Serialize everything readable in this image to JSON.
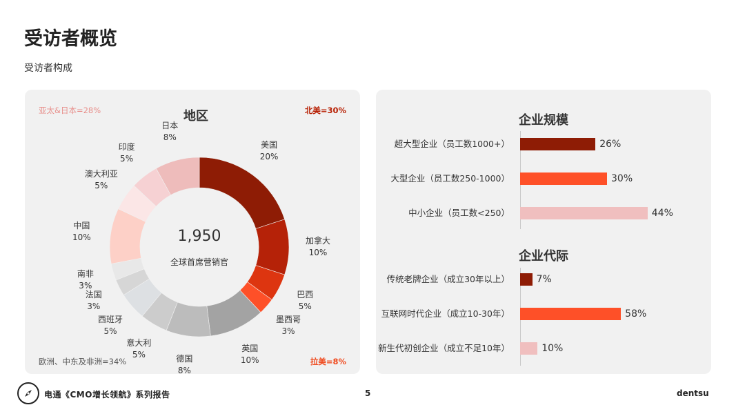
{
  "header": {
    "title": "受访者概览",
    "subtitle": "受访者构成"
  },
  "region_panel": {
    "corners": {
      "apac": "亚太&日本=28%",
      "na": "北美=30%",
      "emea": "欧洲、中东及非洲=34%",
      "latam": "拉美=8%"
    },
    "corner_colors": {
      "apac": "#e8908c",
      "na": "#b82105",
      "emea": "#555555",
      "latam": "#f04a1e"
    },
    "center_value": "1,950",
    "center_caption": "全球首席营销官"
  },
  "sizes_panel": {
    "title": "企业规模"
  },
  "era_panel": {
    "title": "企业代际"
  },
  "chart_data": [
    {
      "type": "pie",
      "title": "地区",
      "slices": [
        {
          "label": "美国",
          "value": 20,
          "value_label": "20%",
          "color": "#8e1c05"
        },
        {
          "label": "加拿大",
          "value": 10,
          "value_label": "10%",
          "color": "#b52208"
        },
        {
          "label": "巴西",
          "value": 5,
          "value_label": "5%",
          "color": "#dd3510"
        },
        {
          "label": "墨西哥",
          "value": 3,
          "value_label": "3%",
          "color": "#fe5028"
        },
        {
          "label": "英国",
          "value": 10,
          "value_label": "10%",
          "color": "#a3a3a3"
        },
        {
          "label": "德国",
          "value": 8,
          "value_label": "8%",
          "color": "#bcbcbc"
        },
        {
          "label": "意大利",
          "value": 5,
          "value_label": "5%",
          "color": "#cccccc"
        },
        {
          "label": "西班牙",
          "value": 5,
          "value_label": "5%",
          "color": "#dde0e3"
        },
        {
          "label": "法国",
          "value": 3,
          "value_label": "3%",
          "color": "#d6d6d6"
        },
        {
          "label": "南非",
          "value": 3,
          "value_label": "3%",
          "color": "#e8e8e8"
        },
        {
          "label": "中国",
          "value": 10,
          "value_label": "10%",
          "color": "#fdd0c7"
        },
        {
          "label": "澳大利亚",
          "value": 5,
          "value_label": "5%",
          "color": "#fbe6e6"
        },
        {
          "label": "印度",
          "value": 5,
          "value_label": "5%",
          "color": "#f6d1d3"
        },
        {
          "label": "日本",
          "value": 8,
          "value_label": "8%",
          "color": "#eebcbb"
        }
      ]
    },
    {
      "type": "bar",
      "title": "企业规模",
      "categories": [
        "超大型企业（员工数1000+）",
        "大型企业（员工数250-1000）",
        "中小企业（员工数<250）"
      ],
      "values": [
        26,
        30,
        44
      ],
      "value_labels": [
        "26%",
        "30%",
        "44%"
      ],
      "colors": [
        "#8e1c05",
        "#fe5028",
        "#f0bfbf"
      ]
    },
    {
      "type": "bar",
      "title": "企业代际",
      "categories": [
        "传统老牌企业（成立30年以上）",
        "互联网时代企业（成立10-30年）",
        "新生代初创企业（成立不足10年）"
      ],
      "values": [
        7,
        58,
        10
      ],
      "value_labels": [
        "7%",
        "58%",
        "10%"
      ],
      "colors": [
        "#8e1c05",
        "#fe5028",
        "#f0bfbf"
      ]
    }
  ],
  "footer": {
    "text": "电通《CMO增长领航》系列报告",
    "page": "5",
    "brand": "dentsu"
  }
}
